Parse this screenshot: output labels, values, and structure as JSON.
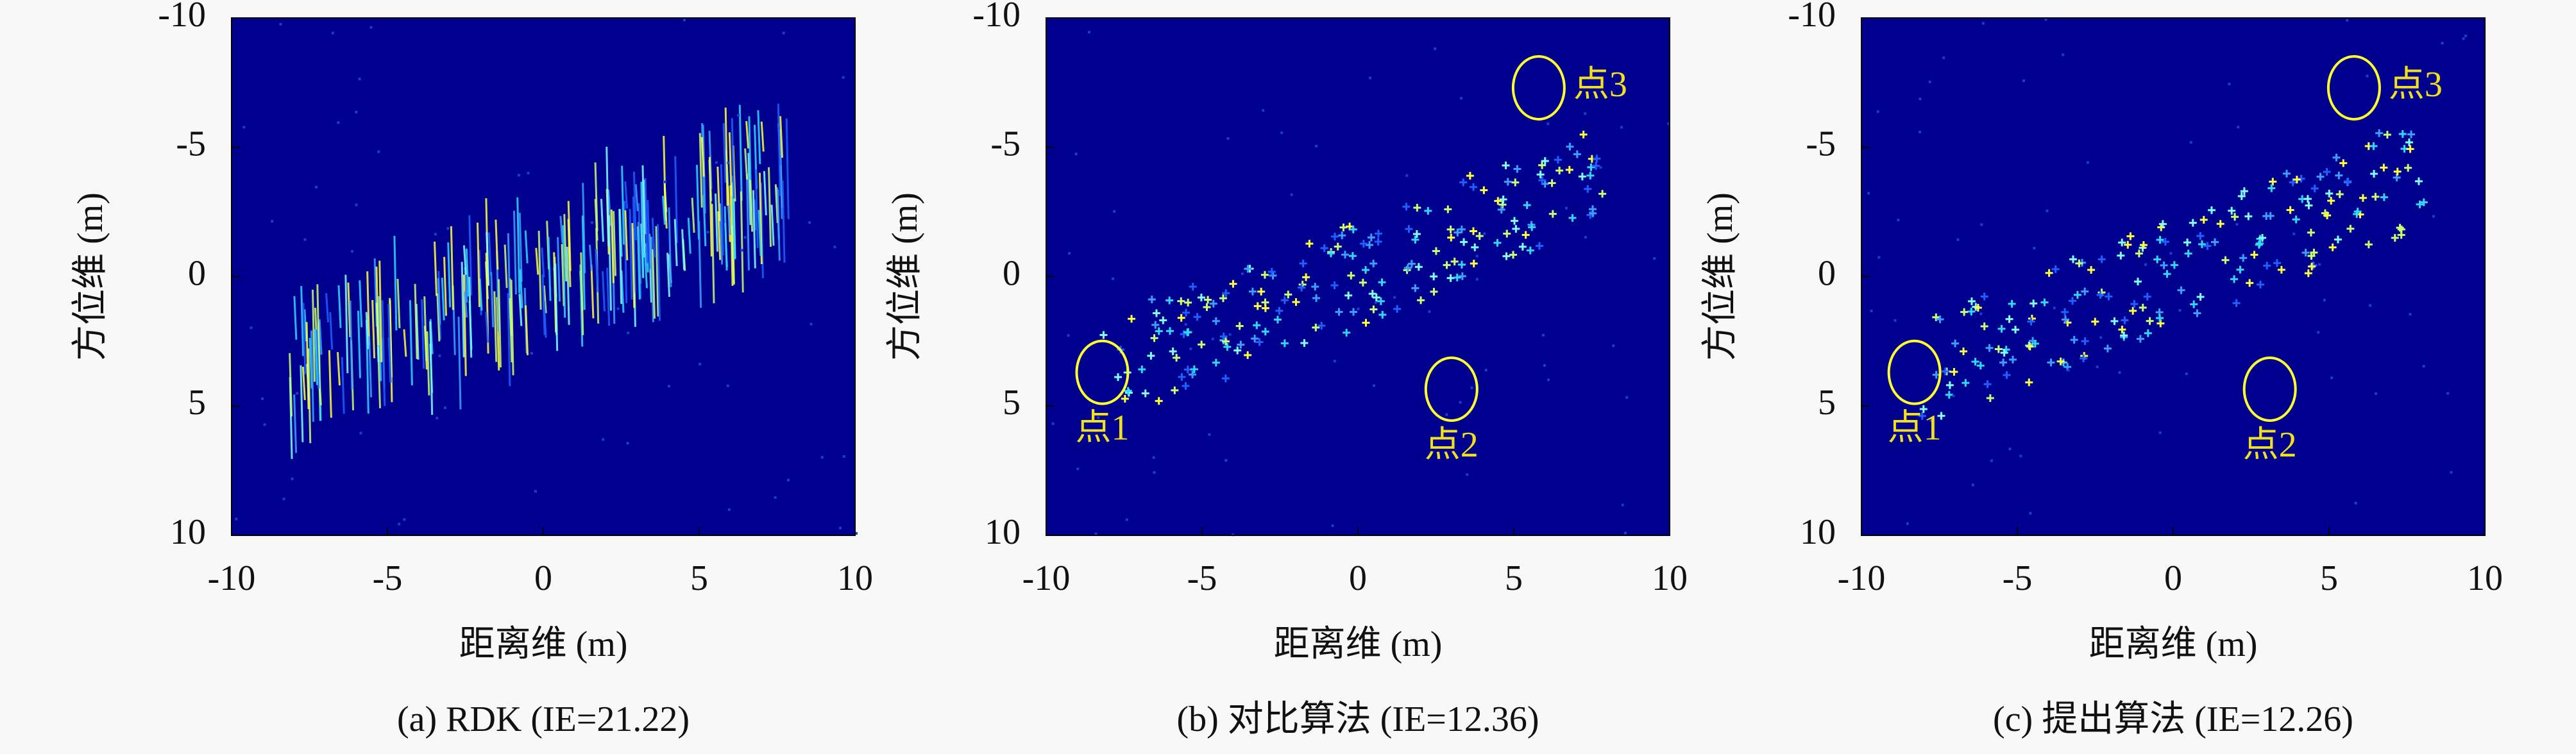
{
  "chart_data": [
    {
      "type": "heatmap",
      "pattern": "streaks",
      "caption": "(a) RDK (IE=21.22)",
      "xlabel": "距离维 (m)",
      "ylabel": "方位维 (m)",
      "xlim": [
        -10,
        10
      ],
      "ylim": [
        -10,
        10
      ],
      "y_inverted": true,
      "xticks": [
        -10,
        -5,
        0,
        5,
        10
      ],
      "yticks": [
        -10,
        -5,
        0,
        5,
        10
      ],
      "annotations": []
    },
    {
      "type": "heatmap",
      "pattern": "points",
      "caption": "(b) 对比算法 (IE=12.36)",
      "xlabel": "距离维 (m)",
      "ylabel": "方位维 (m)",
      "xlim": [
        -10,
        10
      ],
      "ylim": [
        -10,
        10
      ],
      "y_inverted": true,
      "xticks": [
        -10,
        -5,
        0,
        5,
        10
      ],
      "yticks": [
        -10,
        -5,
        0,
        5,
        10
      ],
      "annotations": [
        {
          "text": "点1",
          "x": -8.2,
          "y": 3.7,
          "label_side": "below"
        },
        {
          "text": "点2",
          "x": 3.0,
          "y": 4.35,
          "label_side": "below"
        },
        {
          "text": "点3",
          "x": 5.8,
          "y": -7.3,
          "label_side": "right"
        }
      ]
    },
    {
      "type": "heatmap",
      "pattern": "points",
      "caption": "(c) 提出算法 (IE=12.26)",
      "xlabel": "距离维 (m)",
      "ylabel": "方位维 (m)",
      "xlim": [
        -10,
        10
      ],
      "ylim": [
        -10,
        10
      ],
      "y_inverted": true,
      "xticks": [
        -10,
        -5,
        0,
        5,
        10
      ],
      "yticks": [
        -10,
        -5,
        0,
        5,
        10
      ],
      "annotations": [
        {
          "text": "点1",
          "x": -8.3,
          "y": 3.7,
          "label_side": "below"
        },
        {
          "text": "点2",
          "x": 3.1,
          "y": 4.35,
          "label_side": "below"
        },
        {
          "text": "点3",
          "x": 5.8,
          "y": -7.3,
          "label_side": "right"
        }
      ]
    }
  ]
}
